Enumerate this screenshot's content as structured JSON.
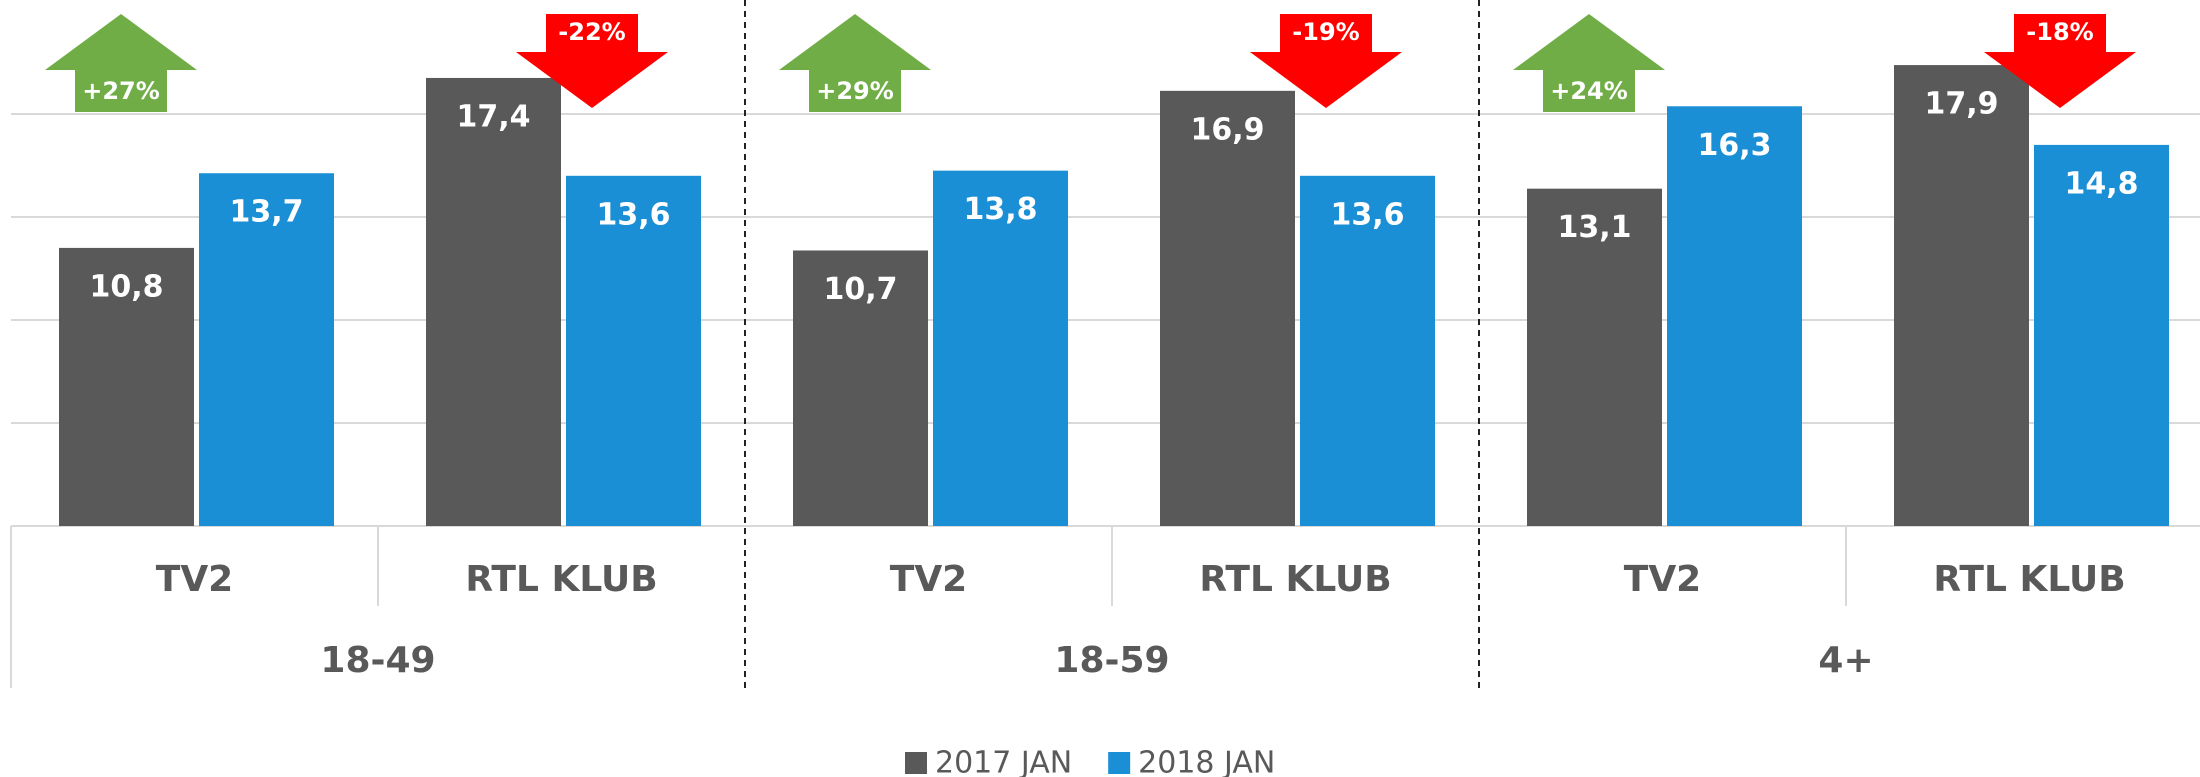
{
  "chart_data": {
    "type": "bar",
    "groups": [
      "18-49",
      "18-59",
      "4+"
    ],
    "categories": [
      "TV2",
      "RTL KLUB",
      "TV2",
      "RTL KLUB",
      "TV2",
      "RTL KLUB"
    ],
    "series": [
      {
        "name": "2017 JAN",
        "color": "#595959",
        "values": [
          10.8,
          17.4,
          10.7,
          16.9,
          13.1,
          17.9
        ],
        "value_labels": [
          "10,8",
          "17,4",
          "10,7",
          "16,9",
          "13,1",
          "17,9"
        ]
      },
      {
        "name": "2018 JAN",
        "color": "#1a8fd6",
        "values": [
          13.7,
          13.6,
          13.8,
          13.6,
          16.3,
          14.8
        ],
        "value_labels": [
          "13,7",
          "13,6",
          "13,8",
          "13,6",
          "16,3",
          "14,8"
        ]
      }
    ],
    "annotations": [
      {
        "text": "+27%",
        "direction": "up",
        "color": "#70ad47"
      },
      {
        "text": "-22%",
        "direction": "down",
        "color": "#ff0000"
      },
      {
        "text": "+29%",
        "direction": "up",
        "color": "#70ad47"
      },
      {
        "text": "-19%",
        "direction": "down",
        "color": "#ff0000"
      },
      {
        "text": "+24%",
        "direction": "up",
        "color": "#70ad47"
      },
      {
        "text": "-18%",
        "direction": "down",
        "color": "#ff0000"
      }
    ],
    "ylim": [
      0,
      20
    ],
    "yticks": [
      0,
      4,
      8,
      12,
      16
    ],
    "grid": true,
    "legend": "bottom"
  }
}
